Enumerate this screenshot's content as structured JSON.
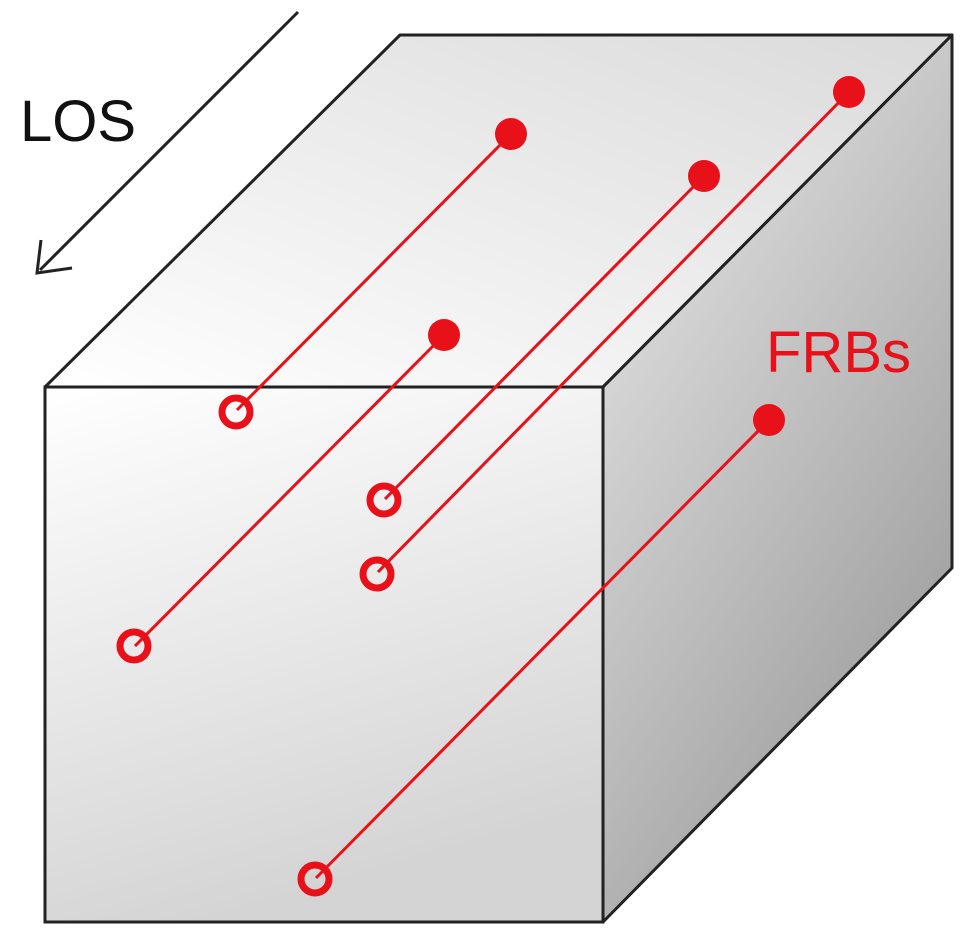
{
  "labels": {
    "los": "LOS",
    "frbs": "FRBs"
  },
  "colors": {
    "frb": "#e8111a",
    "arrow": "#222222",
    "cube_edge": "#222222",
    "cube_front_top": "#ffffff",
    "cube_front_bottom": "#d6d6d6",
    "cube_top_light": "#ffffff",
    "cube_top_dark": "#dcdcdc",
    "cube_side_light": "#e6e6e6",
    "cube_side_dark": "#9a9a9a"
  },
  "icons": {
    "los_arrow": "arrow-down-left-icon",
    "frb_source": "filled-circle",
    "frb_observer": "open-circle"
  },
  "frb_tracks": [
    {
      "id": "frb-1"
    },
    {
      "id": "frb-2"
    },
    {
      "id": "frb-3"
    },
    {
      "id": "frb-4"
    },
    {
      "id": "frb-5"
    }
  ]
}
